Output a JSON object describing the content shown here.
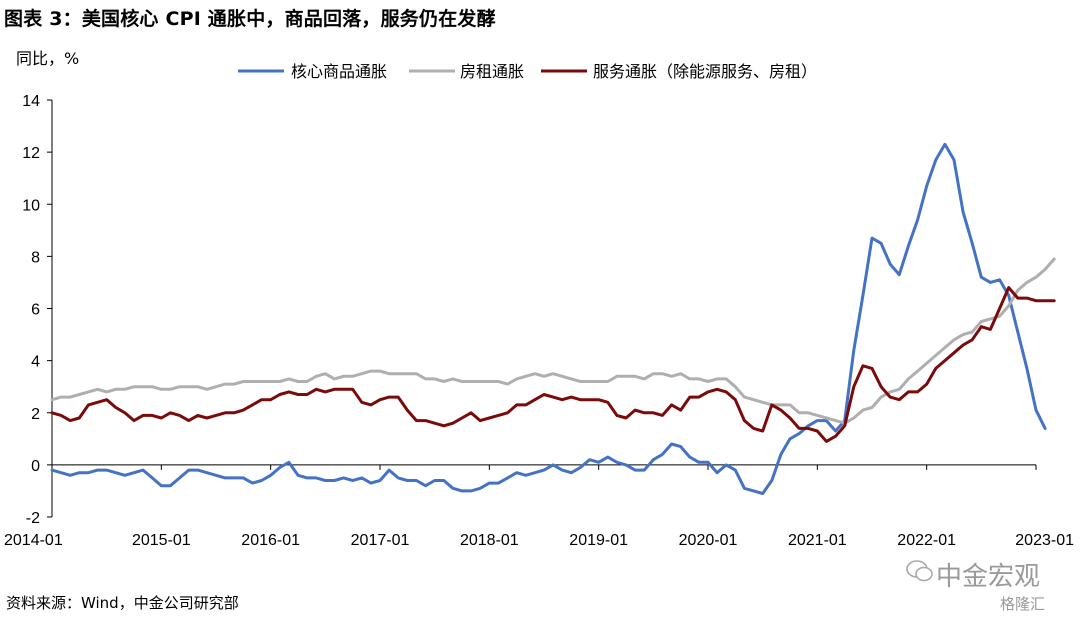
{
  "title": "图表 3：美国核心 CPI 通胀中，商品回落，服务仍在发酵",
  "source": "资料来源：Wind，中金公司研究部",
  "watermark": "中金宏观",
  "watermark2": "格隆汇",
  "chart_data": {
    "type": "line",
    "ylabel": "同比，%",
    "ylim": [
      -2,
      14
    ],
    "yticks": [
      -2,
      0,
      2,
      4,
      6,
      8,
      10,
      12,
      14
    ],
    "xticks": [
      "2014-01",
      "2015-01",
      "2016-01",
      "2017-01",
      "2018-01",
      "2019-01",
      "2020-01",
      "2021-01",
      "2022-01",
      "2023-01"
    ],
    "x_start": "2014-01",
    "x_end": "2023-01",
    "legend_position": "top",
    "series": [
      {
        "name": "核心商品通胀",
        "color": "#4472C4",
        "values": [
          -0.2,
          -0.3,
          -0.4,
          -0.3,
          -0.3,
          -0.2,
          -0.2,
          -0.3,
          -0.4,
          -0.3,
          -0.2,
          -0.5,
          -0.8,
          -0.8,
          -0.5,
          -0.2,
          -0.2,
          -0.3,
          -0.4,
          -0.5,
          -0.5,
          -0.5,
          -0.7,
          -0.6,
          -0.4,
          -0.1,
          0.1,
          -0.4,
          -0.5,
          -0.5,
          -0.6,
          -0.6,
          -0.5,
          -0.6,
          -0.5,
          -0.7,
          -0.6,
          -0.2,
          -0.5,
          -0.6,
          -0.6,
          -0.8,
          -0.6,
          -0.6,
          -0.9,
          -1.0,
          -1.0,
          -0.9,
          -0.7,
          -0.7,
          -0.5,
          -0.3,
          -0.4,
          -0.3,
          -0.2,
          0.0,
          -0.2,
          -0.3,
          -0.1,
          0.2,
          0.1,
          0.3,
          0.1,
          0.0,
          -0.2,
          -0.2,
          0.2,
          0.4,
          0.8,
          0.7,
          0.3,
          0.1,
          0.1,
          -0.3,
          0.0,
          -0.2,
          -0.9,
          -1.0,
          -1.1,
          -0.6,
          0.4,
          1.0,
          1.2,
          1.5,
          1.7,
          1.7,
          1.3,
          1.7,
          4.4,
          6.5,
          8.7,
          8.5,
          7.7,
          7.3,
          8.4,
          9.4,
          10.7,
          11.7,
          12.3,
          11.7,
          9.7,
          8.5,
          7.2,
          7.0,
          7.1,
          6.5,
          5.1,
          3.7,
          2.1,
          1.4
        ]
      },
      {
        "name": "房租通胀",
        "color": "#AFAFAF",
        "values": [
          2.5,
          2.6,
          2.6,
          2.7,
          2.8,
          2.9,
          2.8,
          2.9,
          2.9,
          3.0,
          3.0,
          3.0,
          2.9,
          2.9,
          3.0,
          3.0,
          3.0,
          2.9,
          3.0,
          3.1,
          3.1,
          3.2,
          3.2,
          3.2,
          3.2,
          3.2,
          3.3,
          3.2,
          3.2,
          3.4,
          3.5,
          3.3,
          3.4,
          3.4,
          3.5,
          3.6,
          3.6,
          3.5,
          3.5,
          3.5,
          3.5,
          3.3,
          3.3,
          3.2,
          3.3,
          3.2,
          3.2,
          3.2,
          3.2,
          3.2,
          3.1,
          3.3,
          3.4,
          3.5,
          3.4,
          3.5,
          3.4,
          3.3,
          3.2,
          3.2,
          3.2,
          3.2,
          3.4,
          3.4,
          3.4,
          3.3,
          3.5,
          3.5,
          3.4,
          3.5,
          3.3,
          3.3,
          3.2,
          3.3,
          3.3,
          3.0,
          2.6,
          2.5,
          2.4,
          2.3,
          2.3,
          2.3,
          2.0,
          2.0,
          1.9,
          1.8,
          1.7,
          1.6,
          1.8,
          2.1,
          2.2,
          2.6,
          2.8,
          2.9,
          3.3,
          3.6,
          3.9,
          4.2,
          4.5,
          4.8,
          5.0,
          5.1,
          5.5,
          5.6,
          5.7,
          6.1,
          6.7,
          7.0,
          7.2,
          7.5,
          7.9
        ]
      },
      {
        "name": "服务通胀（除能源服务、房租）",
        "color": "#7B0A0A",
        "values": [
          2.0,
          1.9,
          1.7,
          1.8,
          2.3,
          2.4,
          2.5,
          2.2,
          2.0,
          1.7,
          1.9,
          1.9,
          1.8,
          2.0,
          1.9,
          1.7,
          1.9,
          1.8,
          1.9,
          2.0,
          2.0,
          2.1,
          2.3,
          2.5,
          2.5,
          2.7,
          2.8,
          2.7,
          2.7,
          2.9,
          2.8,
          2.9,
          2.9,
          2.9,
          2.4,
          2.3,
          2.5,
          2.6,
          2.6,
          2.1,
          1.7,
          1.7,
          1.6,
          1.5,
          1.6,
          1.8,
          2.0,
          1.7,
          1.8,
          1.9,
          2.0,
          2.3,
          2.3,
          2.5,
          2.7,
          2.6,
          2.5,
          2.6,
          2.5,
          2.5,
          2.5,
          2.4,
          1.9,
          1.8,
          2.1,
          2.0,
          2.0,
          1.9,
          2.3,
          2.1,
          2.6,
          2.6,
          2.8,
          2.9,
          2.8,
          2.5,
          1.7,
          1.4,
          1.3,
          2.3,
          2.1,
          1.8,
          1.4,
          1.4,
          1.3,
          0.9,
          1.1,
          1.5,
          3.0,
          3.8,
          3.7,
          3.0,
          2.6,
          2.5,
          2.8,
          2.8,
          3.1,
          3.7,
          4.0,
          4.3,
          4.6,
          4.8,
          5.3,
          5.2,
          6.0,
          6.8,
          6.4,
          6.4,
          6.3,
          6.3,
          6.3
        ]
      }
    ]
  }
}
